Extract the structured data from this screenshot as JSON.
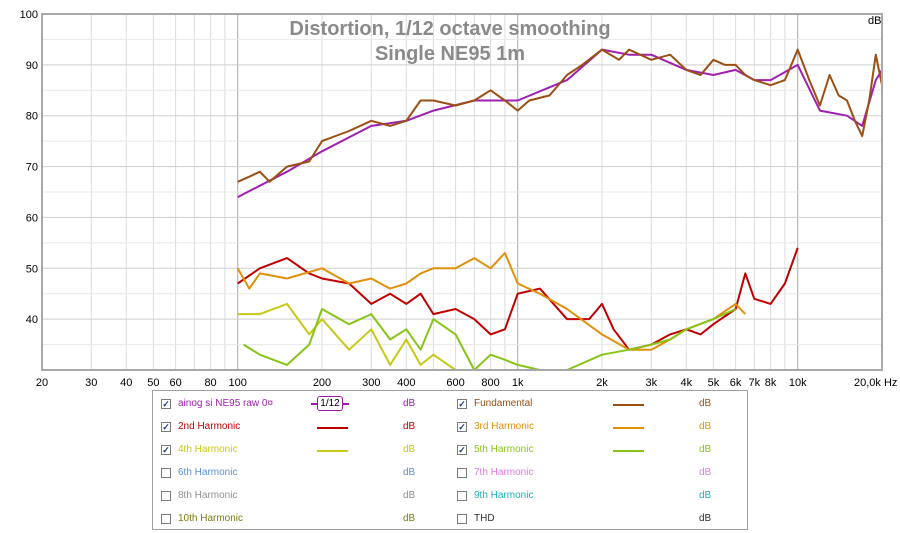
{
  "chart_data": {
    "type": "line",
    "title": "Distortion, 1/12 octave smoothing",
    "subtitle": "Single NE95 1m",
    "ylabel": "dB",
    "xunit": "Hz",
    "xscale": "log",
    "xlim": [
      20,
      20000
    ],
    "ylim": [
      30,
      100
    ],
    "grid": true,
    "y_ticks": [
      40,
      50,
      60,
      70,
      80,
      90,
      100
    ],
    "x_ticks": [
      {
        "v": 20,
        "label": "20"
      },
      {
        "v": 30,
        "label": "30"
      },
      {
        "v": 40,
        "label": "40"
      },
      {
        "v": 50,
        "label": "50"
      },
      {
        "v": 60,
        "label": "60"
      },
      {
        "v": 80,
        "label": "80"
      },
      {
        "v": 100,
        "label": "100"
      },
      {
        "v": 200,
        "label": "200"
      },
      {
        "v": 300,
        "label": "300"
      },
      {
        "v": 400,
        "label": "400"
      },
      {
        "v": 600,
        "label": "600"
      },
      {
        "v": 800,
        "label": "800"
      },
      {
        "v": 1000,
        "label": "1k"
      },
      {
        "v": 2000,
        "label": "2k"
      },
      {
        "v": 3000,
        "label": "3k"
      },
      {
        "v": 4000,
        "label": "4k"
      },
      {
        "v": 5000,
        "label": "5k"
      },
      {
        "v": 6000,
        "label": "6k"
      },
      {
        "v": 7000,
        "label": "7k"
      },
      {
        "v": 8000,
        "label": "8k"
      },
      {
        "v": 10000,
        "label": "10k"
      },
      {
        "v": 20000,
        "label": "20,0k Hz"
      }
    ],
    "series": [
      {
        "name": "ainog si NE95 raw 0",
        "color": "#a020b0",
        "x": [
          100,
          150,
          200,
          300,
          400,
          500,
          700,
          1000,
          1500,
          2000,
          2500,
          3000,
          4000,
          5000,
          6000,
          7000,
          8000,
          10000,
          12000,
          15000,
          17000,
          19000,
          20000
        ],
        "y": [
          64,
          69,
          73,
          78,
          79,
          81,
          83,
          83,
          87,
          93,
          92,
          92,
          89,
          88,
          89,
          87,
          87,
          90,
          81,
          80,
          78,
          87,
          89
        ]
      },
      {
        "name": "Fundamental",
        "color": "#9a4f13",
        "x": [
          100,
          110,
          120,
          130,
          150,
          180,
          200,
          250,
          300,
          350,
          400,
          450,
          500,
          600,
          700,
          800,
          900,
          1000,
          1100,
          1300,
          1500,
          1700,
          2000,
          2300,
          2500,
          3000,
          3500,
          4000,
          4500,
          5000,
          5500,
          6000,
          6500,
          7000,
          8000,
          9000,
          10000,
          11000,
          12000,
          13000,
          14000,
          15000,
          16000,
          17000,
          18000,
          19000,
          20000
        ],
        "y": [
          67,
          68,
          69,
          67,
          70,
          71,
          75,
          77,
          79,
          78,
          79,
          83,
          83,
          82,
          83,
          85,
          83,
          81,
          83,
          84,
          88,
          90,
          93,
          91,
          93,
          91,
          92,
          89,
          88,
          91,
          90,
          90,
          88,
          87,
          86,
          87,
          93,
          87,
          82,
          88,
          84,
          83,
          79,
          76,
          83,
          92,
          86
        ]
      },
      {
        "name": "2nd Harmonic",
        "color": "#c00000",
        "x": [
          100,
          120,
          150,
          180,
          200,
          250,
          300,
          350,
          400,
          450,
          500,
          600,
          700,
          800,
          900,
          1000,
          1200,
          1500,
          1800,
          2000,
          2200,
          2500,
          3000,
          3500,
          4000,
          4500,
          5000,
          6000,
          6500,
          7000,
          8000,
          9000,
          10000
        ],
        "y": [
          47,
          50,
          52,
          49,
          48,
          47,
          43,
          45,
          43,
          45,
          41,
          42,
          40,
          37,
          38,
          45,
          46,
          40,
          40,
          43,
          38,
          34,
          35,
          37,
          38,
          37,
          39,
          42,
          49,
          44,
          43,
          47,
          54
        ]
      },
      {
        "name": "3rd Harmonic",
        "color": "#e0900a",
        "x": [
          100,
          110,
          120,
          150,
          200,
          250,
          300,
          350,
          400,
          450,
          500,
          600,
          700,
          800,
          900,
          1000,
          1200,
          1500,
          2000,
          2500,
          3000,
          3500,
          4000,
          5000,
          6000,
          6500
        ],
        "y": [
          50,
          46,
          49,
          48,
          50,
          47,
          48,
          46,
          47,
          49,
          50,
          50,
          52,
          50,
          53,
          47,
          45,
          42,
          37,
          34,
          34,
          36,
          38,
          40,
          43,
          41
        ]
      },
      {
        "name": "4th Harmonic",
        "color": "#c8c818",
        "x": [
          100,
          120,
          150,
          180,
          200,
          250,
          300,
          350,
          400,
          450,
          500,
          600
        ],
        "y": [
          41,
          41,
          43,
          37,
          40,
          34,
          38,
          31,
          36,
          31,
          33,
          30
        ]
      },
      {
        "name": "5th Harmonic",
        "color": "#88c418",
        "x": [
          105,
          120,
          150,
          180,
          200,
          250,
          300,
          350,
          400,
          450,
          500,
          600,
          700,
          800,
          900,
          1000,
          1200,
          1500,
          2000,
          2500,
          3000,
          3500,
          4000,
          5000,
          6000
        ],
        "y": [
          35,
          33,
          31,
          35,
          42,
          39,
          41,
          36,
          38,
          34,
          40,
          37,
          30,
          33,
          32,
          31,
          30,
          30,
          33,
          34,
          35,
          36,
          38,
          40,
          42
        ]
      }
    ]
  },
  "legend": {
    "rows": [
      {
        "label": "ainog si NE95 raw 0¤",
        "checked": "✓",
        "color": "#a020b0",
        "unit": "dB",
        "smoothing": "1/12"
      },
      {
        "label": "Fundamental",
        "checked": "✓",
        "color": "#9a4f13",
        "unit": "dB"
      },
      {
        "label": "2nd Harmonic",
        "checked": "✓",
        "color": "#c00000",
        "unit": "dB"
      },
      {
        "label": "3rd Harmonic",
        "checked": "✓",
        "color": "#e0900a",
        "unit": "dB"
      },
      {
        "label": "4th Harmonic",
        "checked": "✓",
        "color": "#c8c818",
        "unit": "dB"
      },
      {
        "label": "5th Harmonic",
        "checked": "✓",
        "color": "#88c418",
        "unit": "dB"
      },
      {
        "label": "6th Harmonic",
        "checked": "",
        "color": "#5d8fd8",
        "unit": "dB"
      },
      {
        "label": "7th Harmonic",
        "checked": "",
        "color": "#e078e0",
        "unit": "dB"
      },
      {
        "label": "8th Harmonic",
        "checked": "",
        "color": "#909090",
        "unit": "dB"
      },
      {
        "label": "9th Harmonic",
        "checked": "",
        "color": "#20b0b8",
        "unit": "dB"
      },
      {
        "label": "10th Harmonic",
        "checked": "",
        "color": "#7a7a10",
        "unit": "dB"
      },
      {
        "label": "THD",
        "checked": "",
        "color": "#303030",
        "unit": "dB"
      }
    ]
  }
}
